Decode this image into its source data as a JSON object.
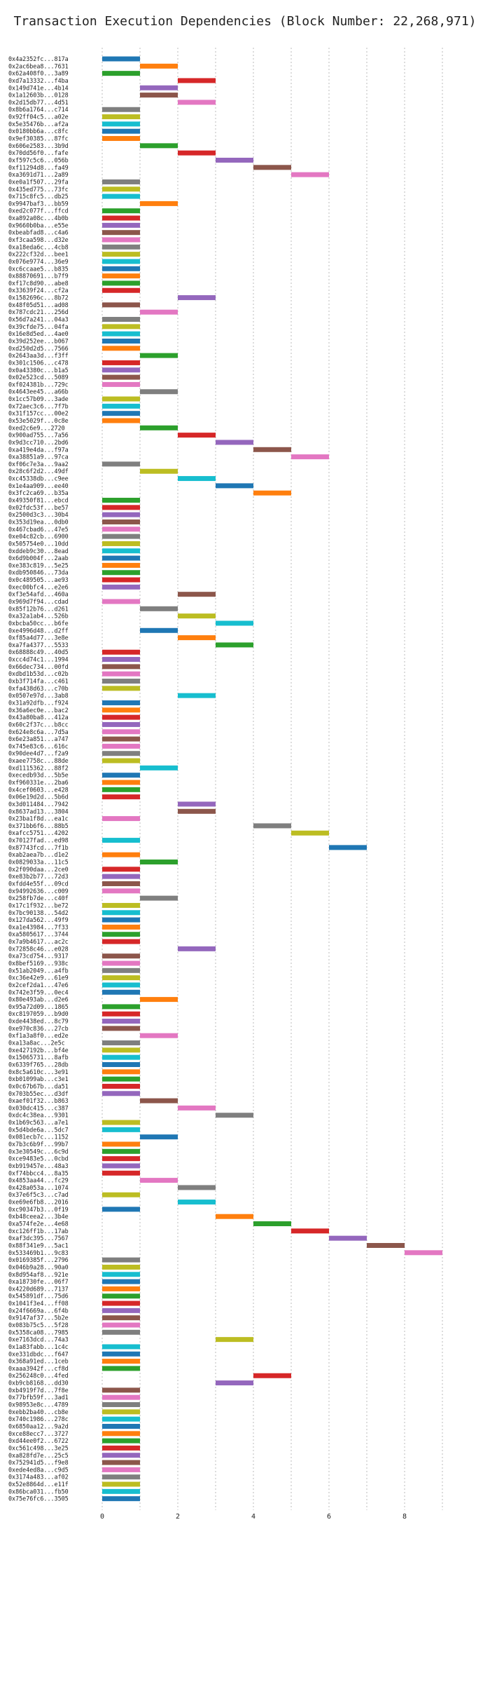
{
  "chart_data": {
    "type": "bar",
    "orientation": "horizontal",
    "title": "Transaction Execution Dependencies (Block Number: 22,268,971)",
    "xlabel": "",
    "ylabel": "",
    "xlim": [
      0,
      9.5
    ],
    "xticks": [
      0,
      2,
      4,
      6,
      8
    ],
    "grid": true,
    "legend": "none",
    "palette": [
      "#1f77b4",
      "#ff7f0e",
      "#2ca02c",
      "#d62728",
      "#9467bd",
      "#8c564b",
      "#e377c2",
      "#7f7f7f",
      "#bcbd22",
      "#17becf"
    ],
    "transactions": [
      [
        "0x4a2352fc...817a",
        0,
        0
      ],
      [
        "0x2ac6bea8...7631",
        1,
        1
      ],
      [
        "0x62a408f0...3a89",
        0,
        2
      ],
      [
        "0xd7a13332...f4ba",
        2,
        3
      ],
      [
        "0x149d741e...4b14",
        1,
        4
      ],
      [
        "0x1a12603b...0128",
        1,
        5
      ],
      [
        "0x2d15db77...4d51",
        2,
        6
      ],
      [
        "0x8b6a1764...c714",
        0,
        7
      ],
      [
        "0x92ff04c5...a02e",
        0,
        8
      ],
      [
        "0x5e35476b...af2a",
        0,
        9
      ],
      [
        "0x0180bb6a...c8fc",
        0,
        0
      ],
      [
        "0x9ef30385...87fc",
        0,
        1
      ],
      [
        "0x606e2583...3b9d",
        1,
        2
      ],
      [
        "0x70dd56f0...fafe",
        2,
        3
      ],
      [
        "0xf597c5c6...056b",
        3,
        4
      ],
      [
        "0xf11294d8...fa49",
        4,
        5
      ],
      [
        "0xa3691d71...2a89",
        5,
        6
      ],
      [
        "0xe0a1f507...29fa",
        0,
        7
      ],
      [
        "0x435ed775...73fc",
        0,
        8
      ],
      [
        "0x715c8fc5...db25",
        0,
        9
      ],
      [
        "0x9947baf3...bb59",
        1,
        1
      ],
      [
        "0xed2c077f...ffcd",
        0,
        2
      ],
      [
        "0xa892a08c...4b0b",
        0,
        3
      ],
      [
        "0x9660b0ba...e55e",
        0,
        4
      ],
      [
        "0xbeabfad8...c4a6",
        0,
        5
      ],
      [
        "0xf3caa598...d32e",
        0,
        6
      ],
      [
        "0xa18eda6c...4cb8",
        0,
        7
      ],
      [
        "0x222cf32d...bee1",
        0,
        8
      ],
      [
        "0x076e9774...36e9",
        0,
        9
      ],
      [
        "0xc6ccaae5...b835",
        0,
        0
      ],
      [
        "0x88870691...b7f9",
        0,
        1
      ],
      [
        "0xf17c8d90...abe8",
        0,
        2
      ],
      [
        "0x33639f24...cf2a",
        0,
        3
      ],
      [
        "0x1582696c...8b72",
        2,
        4
      ],
      [
        "0x48f05d51...ad08",
        0,
        5
      ],
      [
        "0x787cdc21...256d",
        1,
        6
      ],
      [
        "0x56d7a241...04a3",
        0,
        7
      ],
      [
        "0x39cfde75...04fa",
        0,
        8
      ],
      [
        "0x16e8d5ed...4ae0",
        0,
        9
      ],
      [
        "0x39d252ee...b067",
        0,
        0
      ],
      [
        "0xd250d2d5...7566",
        0,
        1
      ],
      [
        "0x2643aa3d...f3ff",
        1,
        2
      ],
      [
        "0x301c1506...c478",
        0,
        3
      ],
      [
        "0x0a43380c...b1a5",
        0,
        4
      ],
      [
        "0x02e523cd...5089",
        0,
        5
      ],
      [
        "0xf024381b...729c",
        0,
        6
      ],
      [
        "0x4643ee45...a66b",
        1,
        7
      ],
      [
        "0x1cc57b09...3ade",
        0,
        8
      ],
      [
        "0x72aec3c6...7f7b",
        0,
        9
      ],
      [
        "0x31f157cc...00e2",
        0,
        0
      ],
      [
        "0x53e5029f...0c8e",
        0,
        1
      ],
      [
        "0xed2c6e9...2720",
        1,
        2
      ],
      [
        "0x900ad755...7a56",
        2,
        3
      ],
      [
        "0x9d3cc710...2bd6",
        3,
        4
      ],
      [
        "0xa419e4da...f97a",
        4,
        5
      ],
      [
        "0xa38851a9...97ca",
        5,
        6
      ],
      [
        "0xf06c7e3a...9aa2",
        0,
        7
      ],
      [
        "0x28c6f2d2...49df",
        1,
        8
      ],
      [
        "0xc45338db...c9ee",
        2,
        9
      ],
      [
        "0x1e4aa909...ee40",
        3,
        0
      ],
      [
        "0x3fc2ca69...b35a",
        4,
        1
      ],
      [
        "0x49350f81...ebcd",
        0,
        2
      ],
      [
        "0x02fdc53f...be57",
        0,
        3
      ],
      [
        "0x2500d3c3...30b4",
        0,
        4
      ],
      [
        "0x353d19ea...0db0",
        0,
        5
      ],
      [
        "0x467cbad6...47e5",
        0,
        6
      ],
      [
        "0xe04c82cb...6900",
        0,
        7
      ],
      [
        "0x505754e0...10dd",
        0,
        8
      ],
      [
        "0xddeb9c30...8ead",
        0,
        9
      ],
      [
        "0x6d9b004f...2aab",
        0,
        0
      ],
      [
        "0xe383c819...5e25",
        0,
        1
      ],
      [
        "0xdb950846...73da",
        0,
        2
      ],
      [
        "0x0c489505...ae93",
        0,
        3
      ],
      [
        "0xec00bfc4...e2e6",
        0,
        4
      ],
      [
        "0xf3e54afd...460a",
        2,
        5
      ],
      [
        "0x969d7f94...cdad",
        0,
        6
      ],
      [
        "0x85f12b76...d261",
        1,
        7
      ],
      [
        "0xa32a1ab4...526b",
        2,
        8
      ],
      [
        "0xbcba50cc...b6fe",
        3,
        9
      ],
      [
        "0xe4996d48...d2ff",
        1,
        0
      ],
      [
        "0xf85a4d77...3e8e",
        2,
        1
      ],
      [
        "0xa7fa4377...5533",
        3,
        2
      ],
      [
        "0x68888c49...40d5",
        0,
        3
      ],
      [
        "0xcc4d74c1...1994",
        0,
        4
      ],
      [
        "0x66dec734...00fd",
        0,
        5
      ],
      [
        "0xdbd1b53d...c02b",
        0,
        6
      ],
      [
        "0xb3f714fa...c461",
        0,
        7
      ],
      [
        "0xfa438d63...c70b",
        0,
        8
      ],
      [
        "0x0507e97d...3ab8",
        2,
        9
      ],
      [
        "0x31a92dfb...f924",
        0,
        0
      ],
      [
        "0x36a6ec0e...bac2",
        0,
        1
      ],
      [
        "0x43a80ba8...412a",
        0,
        3
      ],
      [
        "0x60c2f37c...b8cc",
        0,
        4
      ],
      [
        "0x624e8c6a...7d5a",
        0,
        6
      ],
      [
        "0x6e23a851...a747",
        0,
        5
      ],
      [
        "0x745e83c6...616c",
        0,
        6
      ],
      [
        "0x90dee4d7...f2a9",
        0,
        7
      ],
      [
        "0xaee7758c...88de",
        0,
        8
      ],
      [
        "0xd1115362...88f2",
        1,
        9
      ],
      [
        "0xecedb93d...5b5e",
        0,
        0
      ],
      [
        "0xf960331e...2ba6",
        0,
        1
      ],
      [
        "0x4cef0603...e428",
        0,
        2
      ],
      [
        "0x06e19d2d...5b6d",
        0,
        3
      ],
      [
        "0x3d011484...7942",
        2,
        4
      ],
      [
        "0x8637ad13...3804",
        2,
        5
      ],
      [
        "0x23ba1f8d...ea1c",
        0,
        6
      ],
      [
        "0x371bb6f6...88b5",
        4,
        7
      ],
      [
        "0xafcc5751...4202",
        5,
        8
      ],
      [
        "0x70127fad...ed98",
        0,
        9
      ],
      [
        "0x87743fcd...7f1b",
        6,
        0
      ],
      [
        "0xab2aea7b...d1e2",
        0,
        1
      ],
      [
        "0x0829033a...11c5",
        1,
        2
      ],
      [
        "0x2f090daa...2ce0",
        0,
        3
      ],
      [
        "0xe83b2b77...72d3",
        0,
        4
      ],
      [
        "0xfdd4e55f...09cd",
        0,
        5
      ],
      [
        "0x94992636...c009",
        0,
        6
      ],
      [
        "0x258fb7de...c40f",
        1,
        7
      ],
      [
        "0x17c1f932...be72",
        0,
        8
      ],
      [
        "0x7bc90138...54d2",
        0,
        9
      ],
      [
        "0x127da562...49f9",
        0,
        0
      ],
      [
        "0xa1e43984...7f33",
        0,
        1
      ],
      [
        "0xa5805617...3744",
        0,
        2
      ],
      [
        "0x7a9b4617...ac2c",
        0,
        3
      ],
      [
        "0x72858c46...e028",
        2,
        4
      ],
      [
        "0xa73cd754...9317",
        0,
        5
      ],
      [
        "0x8bef5169...938c",
        0,
        6
      ],
      [
        "0x51ab2049...a4fb",
        0,
        7
      ],
      [
        "0xc36e42e9...61e9",
        0,
        8
      ],
      [
        "0x2cef2da1...47e6",
        0,
        9
      ],
      [
        "0x742e3f59...0ec4",
        0,
        0
      ],
      [
        "0x80e493ab...d2e6",
        1,
        1
      ],
      [
        "0x95a72d09...1865",
        0,
        2
      ],
      [
        "0xc8197059...b9d0",
        0,
        3
      ],
      [
        "0xde4438ed...8c79",
        0,
        4
      ],
      [
        "0xe970c836...27cb",
        0,
        5
      ],
      [
        "0xf1a3a8f0...ed2e",
        1,
        6
      ],
      [
        "0xa13a8ac...2e5c",
        0,
        7
      ],
      [
        "0xe427192b...bf4e",
        0,
        8
      ],
      [
        "0x15065731...8afb",
        0,
        9
      ],
      [
        "0x6339f765...28db",
        0,
        0
      ],
      [
        "0x8c5a610c...3e91",
        0,
        1
      ],
      [
        "0xb01099ab...c3e1",
        0,
        2
      ],
      [
        "0x0c67b67b...da51",
        0,
        3
      ],
      [
        "0x703b55ec...d3df",
        0,
        4
      ],
      [
        "0xaef01f32...b863",
        1,
        5
      ],
      [
        "0x030dc415...c387",
        2,
        6
      ],
      [
        "0xdc4c38ea...9301",
        3,
        7
      ],
      [
        "0x1b69c563...a7e1",
        0,
        8
      ],
      [
        "0x5d4bde6a...5dc7",
        0,
        9
      ],
      [
        "0x081ecb7c...1152",
        1,
        0
      ],
      [
        "0x7b3c6b9f...99b7",
        0,
        1
      ],
      [
        "0x3e30549c...6c9d",
        0,
        2
      ],
      [
        "0xce9483e5...0cbd",
        0,
        3
      ],
      [
        "0xb919457e...48a3",
        0,
        4
      ],
      [
        "0xf74bbcc4...8a35",
        0,
        3
      ],
      [
        "0x4853aa44...fc29",
        1,
        6
      ],
      [
        "0x428a053a...1074",
        2,
        7
      ],
      [
        "0x37e6f5c3...c7ad",
        0,
        8
      ],
      [
        "0xe69e6fb8...2016",
        2,
        9
      ],
      [
        "0xc90347b3...0f19",
        0,
        0
      ],
      [
        "0xb48ceea2...3b4e",
        3,
        1
      ],
      [
        "0xa574fe2e...4e68",
        4,
        2
      ],
      [
        "0xc126ff1b...17ab",
        5,
        3
      ],
      [
        "0xaf3dc395...7567",
        6,
        4
      ],
      [
        "0x88f341e9...5ac1",
        7,
        5
      ],
      [
        "0x533469b1...9c83",
        8,
        6
      ],
      [
        "0x0169385f...2796",
        0,
        7
      ],
      [
        "0x046b9a28...90a0",
        0,
        8
      ],
      [
        "0x8d954af8...921e",
        0,
        9
      ],
      [
        "0xa18730fe...06f7",
        0,
        0
      ],
      [
        "0x4220d689...7137",
        0,
        1
      ],
      [
        "0x545891df...75d6",
        0,
        2
      ],
      [
        "0x1041f3e4...ff08",
        0,
        3
      ],
      [
        "0x24f6669a...6f4b",
        0,
        4
      ],
      [
        "0x9147af37...5b2e",
        0,
        5
      ],
      [
        "0x083b75c5...5f28",
        0,
        6
      ],
      [
        "0x5358ca08...7985",
        0,
        7
      ],
      [
        "0xe7163dcd...74a3",
        3,
        8
      ],
      [
        "0x1a83fabb...1c4c",
        0,
        9
      ],
      [
        "0xe331dbdc...f647",
        0,
        0
      ],
      [
        "0x368a91ed...1ceb",
        0,
        1
      ],
      [
        "0xaaa3942f...cf8d",
        0,
        2
      ],
      [
        "0x256248c0...4fed",
        4,
        3
      ],
      [
        "0xb9cb8168...dd30",
        3,
        4
      ],
      [
        "0xb4919f7d...7f8e",
        0,
        5
      ],
      [
        "0x77bfb59f...3ad1",
        0,
        6
      ],
      [
        "0x98953e8c...4789",
        0,
        7
      ],
      [
        "0xebb2ba40...cb8e",
        0,
        8
      ],
      [
        "0x740c1986...278c",
        0,
        9
      ],
      [
        "0x6850aa12...9a2d",
        0,
        0
      ],
      [
        "0xce88ecc7...3727",
        0,
        1
      ],
      [
        "0xd44ee0f2...6722",
        0,
        2
      ],
      [
        "0xc561c498...3e25",
        0,
        3
      ],
      [
        "0xa828fd7e...25c5",
        0,
        4
      ],
      [
        "0x752941d5...f9e8",
        0,
        5
      ],
      [
        "0xede4ed8a...c9d5",
        0,
        6
      ],
      [
        "0x3174a483...af02",
        0,
        7
      ],
      [
        "0x52e8864d...e11f",
        0,
        8
      ],
      [
        "0x86bca031...fb50",
        0,
        9
      ],
      [
        "0x75e76fc6...3505",
        0,
        0
      ]
    ]
  }
}
